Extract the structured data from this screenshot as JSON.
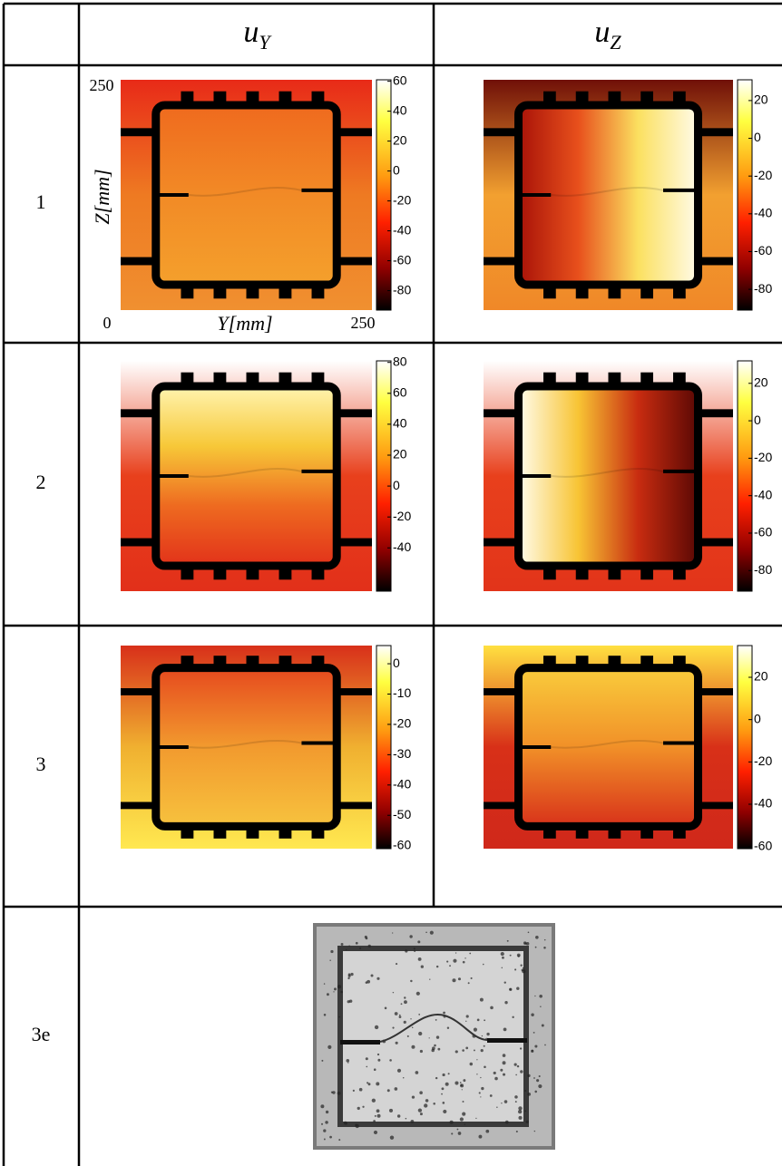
{
  "table": {
    "columns": [
      {
        "base": "u",
        "sub": "Y"
      },
      {
        "base": "u",
        "sub": "Z"
      }
    ],
    "axes": {
      "ylabel": "Z[mm]",
      "xlabel": "Y[mm]",
      "origin": 0,
      "ymax": 250,
      "xmax": 250
    },
    "rows": [
      {
        "label": "1",
        "panels": [
          {
            "colorbar": {
              "lim": [
                -93,
                61
              ],
              "ticks": [
                60,
                40,
                20,
                0,
                -20,
                -40,
                -60,
                -80
              ]
            }
          },
          {
            "colorbar": {
              "lim": [
                -91,
                31
              ],
              "ticks": [
                20,
                0,
                -20,
                -40,
                -60,
                -80
              ]
            }
          }
        ]
      },
      {
        "label": "2",
        "panels": [
          {
            "colorbar": {
              "lim": [
                -68,
                81
              ],
              "ticks": [
                80,
                60,
                40,
                20,
                0,
                -20,
                -40
              ]
            }
          },
          {
            "colorbar": {
              "lim": [
                -91,
                32
              ],
              "ticks": [
                20,
                0,
                -20,
                -40,
                -60,
                -80
              ]
            }
          }
        ]
      },
      {
        "label": "3",
        "panels": [
          {
            "colorbar": {
              "lim": [
                -61,
                6
              ],
              "ticks": [
                0,
                -10,
                -20,
                -30,
                -40,
                -50,
                -60
              ]
            }
          },
          {
            "colorbar": {
              "lim": [
                -61,
                35
              ],
              "ticks": [
                20,
                0,
                -20,
                -40,
                -60
              ]
            }
          }
        ]
      },
      {
        "label": "3e"
      }
    ]
  }
}
